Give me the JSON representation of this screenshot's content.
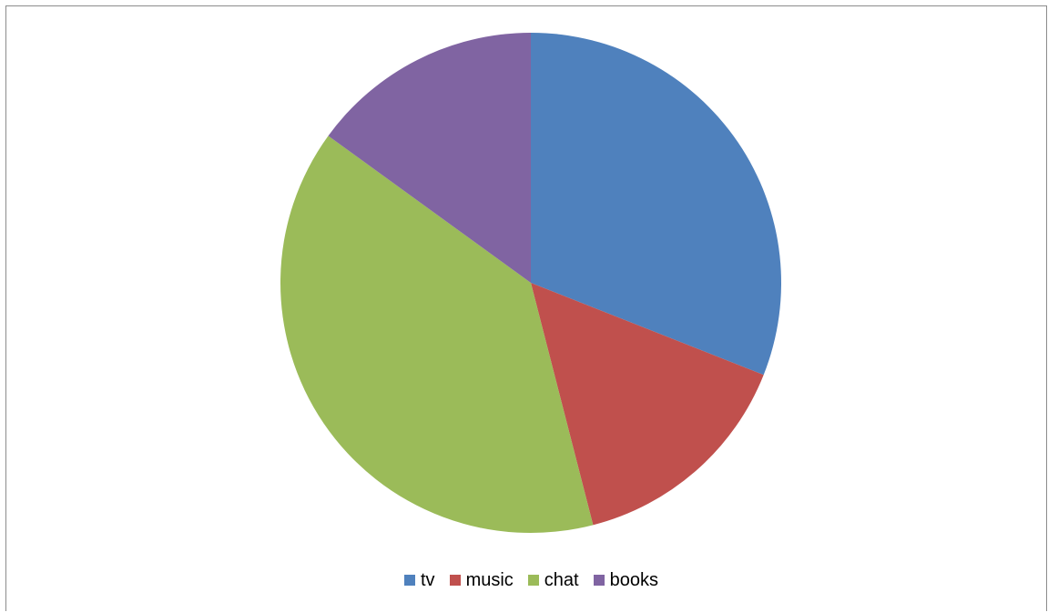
{
  "chart_data": {
    "type": "pie",
    "title": "",
    "categories": [
      "tv",
      "music",
      "chat",
      "books"
    ],
    "values": [
      31,
      15,
      39,
      15
    ],
    "colors": [
      "#4F81BD",
      "#C0504D",
      "#9BBB59",
      "#8064A2"
    ],
    "start_angle_deg": 0,
    "direction": "clockwise",
    "legend": {
      "position": "bottom",
      "items": [
        {
          "label": "tv",
          "color": "#4F81BD"
        },
        {
          "label": "music",
          "color": "#C0504D"
        },
        {
          "label": "chat",
          "color": "#9BBB59"
        },
        {
          "label": "books",
          "color": "#8064A2"
        }
      ]
    }
  }
}
